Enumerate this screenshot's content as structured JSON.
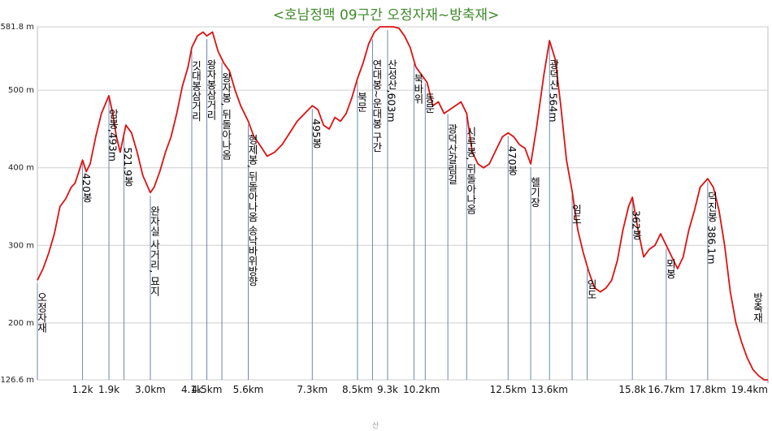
{
  "chart_data": {
    "type": "line",
    "title": "<호남정맥 09구간 오정자재~방축재>",
    "xlabel": "",
    "ylabel": "",
    "xlim": [
      0,
      19.4
    ],
    "ylim": [
      126.6,
      581.8
    ],
    "y_ticks": [
      {
        "value": 581.8,
        "label": "581.8 m"
      },
      {
        "value": 500,
        "label": "500 m"
      },
      {
        "value": 400,
        "label": "400 m"
      },
      {
        "value": 300,
        "label": "300 m"
      },
      {
        "value": 200,
        "label": "200 m"
      },
      {
        "value": 126.6,
        "label": "126.6 m"
      }
    ],
    "x_ticks": [
      {
        "value": 1.2,
        "label": "1.2k"
      },
      {
        "value": 1.9,
        "label": "1.9k"
      },
      {
        "value": 3.0,
        "label": "3.0km"
      },
      {
        "value": 4.1,
        "label": "4.1k"
      },
      {
        "value": 4.5,
        "label": "4.5km"
      },
      {
        "value": 5.6,
        "label": "5.6km"
      },
      {
        "value": 7.3,
        "label": "7.3km"
      },
      {
        "value": 8.5,
        "label": "8.5km"
      },
      {
        "value": 9.3,
        "label": "9.3k"
      },
      {
        "value": 10.2,
        "label": "10.2km"
      },
      {
        "value": 12.5,
        "label": "12.5km"
      },
      {
        "value": 13.6,
        "label": "13.6km"
      },
      {
        "value": 15.8,
        "label": "15.8k"
      },
      {
        "value": 16.7,
        "label": "16.7km"
      },
      {
        "value": 17.8,
        "label": "17.8km"
      },
      {
        "value": 19.4,
        "label": "19.4km"
      }
    ],
    "grid": true,
    "line_color": "#dd1111",
    "series": [
      {
        "x": [
          0.0,
          0.15,
          0.3,
          0.45,
          0.6,
          0.75,
          0.9,
          1.0,
          1.1,
          1.2,
          1.3,
          1.4,
          1.55,
          1.7,
          1.9,
          2.0,
          2.1,
          2.2,
          2.35,
          2.5,
          2.65,
          2.8,
          3.0,
          3.1,
          3.25,
          3.4,
          3.55,
          3.7,
          3.85,
          4.0,
          4.1,
          4.25,
          4.4,
          4.5,
          4.65,
          4.8,
          4.95,
          5.1,
          5.25,
          5.4,
          5.6,
          5.75,
          5.9,
          6.1,
          6.3,
          6.5,
          6.7,
          6.9,
          7.1,
          7.3,
          7.45,
          7.6,
          7.75,
          7.9,
          8.05,
          8.2,
          8.35,
          8.5,
          8.65,
          8.8,
          8.95,
          9.1,
          9.3,
          9.45,
          9.6,
          9.75,
          9.9,
          10.05,
          10.2,
          10.35,
          10.5,
          10.65,
          10.8,
          10.95,
          11.1,
          11.25,
          11.4,
          11.55,
          11.7,
          11.85,
          12.0,
          12.15,
          12.35,
          12.5,
          12.65,
          12.8,
          12.95,
          13.1,
          13.25,
          13.45,
          13.6,
          13.75,
          13.9,
          14.05,
          14.2,
          14.35,
          14.5,
          14.65,
          14.8,
          14.95,
          15.1,
          15.25,
          15.4,
          15.55,
          15.7,
          15.8,
          15.95,
          16.1,
          16.25,
          16.4,
          16.55,
          16.7,
          16.85,
          17.0,
          17.15,
          17.3,
          17.45,
          17.6,
          17.8,
          17.95,
          18.1,
          18.25,
          18.4,
          18.55,
          18.7,
          18.85,
          19.0,
          19.15,
          19.3,
          19.4
        ],
        "y": [
          255,
          270,
          290,
          315,
          350,
          360,
          375,
          380,
          395,
          410,
          395,
          405,
          440,
          470,
          493,
          470,
          440,
          420,
          455,
          445,
          420,
          390,
          368,
          375,
          395,
          420,
          440,
          470,
          505,
          530,
          555,
          570,
          575,
          570,
          575,
          550,
          535,
          525,
          500,
          480,
          460,
          440,
          430,
          415,
          420,
          430,
          445,
          460,
          470,
          480,
          475,
          455,
          450,
          465,
          460,
          470,
          490,
          515,
          535,
          560,
          575,
          590,
          603,
          590,
          580,
          570,
          555,
          530,
          520,
          510,
          480,
          485,
          470,
          475,
          480,
          485,
          470,
          420,
          405,
          400,
          405,
          420,
          440,
          445,
          440,
          430,
          425,
          405,
          450,
          520,
          564,
          540,
          480,
          410,
          370,
          320,
          290,
          265,
          245,
          240,
          245,
          255,
          280,
          320,
          350,
          362,
          320,
          285,
          295,
          300,
          315,
          300,
          285,
          270,
          285,
          320,
          345,
          375,
          386,
          375,
          345,
          300,
          240,
          200,
          175,
          155,
          140,
          132,
          126.6,
          126.6
        ]
      }
    ],
    "waypoints": [
      {
        "x": 0.0,
        "label": "오정자재"
      },
      {
        "x": 1.2,
        "label": "420봉"
      },
      {
        "x": 1.9,
        "label": "암봉,493m"
      },
      {
        "x": 2.3,
        "label": "521.9봉"
      },
      {
        "x": 3.0,
        "label": "완자실 사거리, 묘지"
      },
      {
        "x": 4.1,
        "label": "깃대봉삼거리"
      },
      {
        "x": 4.5,
        "label": "왕자봉삼거리"
      },
      {
        "x": 4.9,
        "label": "왕자봉, 뒤돌아나옴"
      },
      {
        "x": 5.6,
        "label": "형제봉, 뒤돌아나옴 송낙바위방향"
      },
      {
        "x": 7.3,
        "label": "495봉"
      },
      {
        "x": 8.5,
        "label": "북문"
      },
      {
        "x": 8.9,
        "label": "연대봉~운대봉 구간"
      },
      {
        "x": 9.3,
        "label": "산성산,603m"
      },
      {
        "x": 10.0,
        "label": "북바위"
      },
      {
        "x": 10.3,
        "label": "동문"
      },
      {
        "x": 10.9,
        "label": "광덕산갈림길"
      },
      {
        "x": 11.4,
        "label": "시루봉, 뒤돌아나옴"
      },
      {
        "x": 12.5,
        "label": "470봉"
      },
      {
        "x": 13.1,
        "label": "헬기장"
      },
      {
        "x": 13.6,
        "label": "광덕산 564m"
      },
      {
        "x": 14.2,
        "label": "임도"
      },
      {
        "x": 14.6,
        "label": "임도"
      },
      {
        "x": 15.8,
        "label": "362봉"
      },
      {
        "x": 16.7,
        "label": "뫼봉"
      },
      {
        "x": 17.8,
        "label": "덕진봉 386.1m"
      },
      {
        "x": 19.4,
        "label": "방축재"
      }
    ],
    "footer": "산"
  }
}
